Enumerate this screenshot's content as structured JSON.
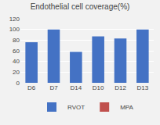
{
  "chart_data": {
    "type": "bar",
    "title": "Endothelial cell coverage(%)",
    "categories": [
      "D6",
      "D7",
      "D14",
      "D10",
      "D12",
      "D13"
    ],
    "series": [
      {
        "name": "RVOT",
        "color": "#4472C4",
        "values": [
          76,
          100,
          58,
          87,
          83,
          100
        ]
      },
      {
        "name": "MPA",
        "color": "#C0504D",
        "values": [
          0,
          0,
          0,
          0,
          0,
          0
        ]
      }
    ],
    "ylim": [
      0,
      120
    ],
    "yticks": [
      0,
      20,
      40,
      60,
      80,
      100,
      120
    ],
    "grid": true,
    "legend": "bottom"
  }
}
